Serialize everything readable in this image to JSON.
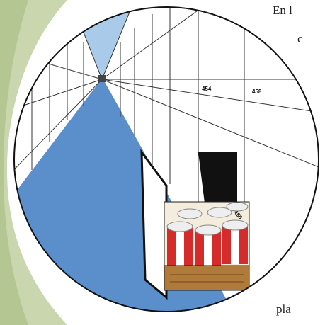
{
  "page": {
    "text_fragments": [
      "En l",
      "c",
      "pla"
    ],
    "cabinet_labels": [
      "454",
      "458",
      "450"
    ]
  }
}
